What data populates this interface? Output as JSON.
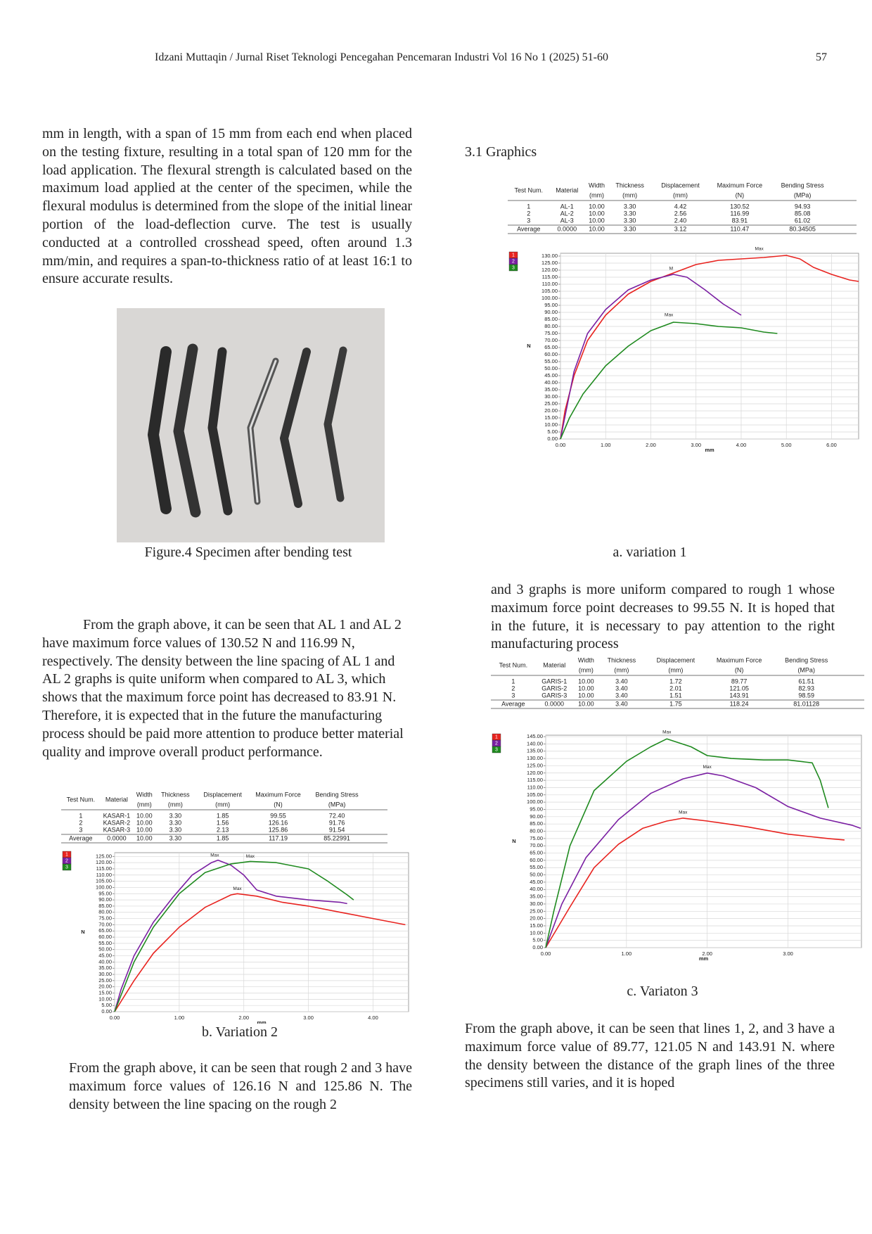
{
  "header": {
    "running_title": "Idzani Muttaqin / Jurnal Riset Teknologi Pencegahan Pencemaran Industri Vol 16 No 1 (2025) 51-60",
    "page_number": "57"
  },
  "left_column": {
    "paragraph_1": "mm in length, with a span of 15 mm from each end when placed on the testing fixture, resulting in a total span of 120 mm for the load application. The flexural strength is calculated based on the maximum load applied at the center of the specimen, while the flexural modulus is determined from the slope of the initial linear portion of the load-deflection curve. The test is usually conducted at a controlled crosshead speed, often around 1.3 mm/min, and requires a span-to-thickness ratio of at least 16:1 to ensure accurate results.",
    "figure_caption": "Figure.4 Specimen after bending test",
    "paragraph_2": "From the graph above, it can be seen that AL 1 and AL 2 have maximum force values of 130.52 N and 116.99 N, respectively. The density between the line spacing of AL 1 and AL 2 graphs is quite uniform when compared to AL 3, which shows that the maximum force point has decreased to 83.91 N. Therefore, it is expected that in the future the manufacturing process should be paid more attention to produce better material quality and improve overall product performance.",
    "caption_b": "b. Variation 2",
    "paragraph_3": "From the graph above, it can be seen that rough 2 and 3 have maximum force values of 126.16 N and 125.86 N. The density between the line spacing on the rough 2"
  },
  "right_column": {
    "section_heading": "3.1 Graphics",
    "caption_a": "a. variation 1",
    "paragraph_1": "and 3 graphs is more uniform compared to rough 1 whose maximum force point decreases to 99.55 N. It is hoped that in the future, it is necessary to pay attention to the right manufacturing process",
    "caption_c": "c. Variaton 3",
    "paragraph_2": "From the graph above, it can be seen that lines 1, 2, and 3 have a maximum force value of 89.77, 121.05 N and 143.91 N. where the density between the distance of the graph lines of the three specimens still varies, and it is hoped"
  },
  "tables": [
    {
      "columns": [
        [
          "Test Num."
        ],
        [
          "Material"
        ],
        [
          "Width",
          "(mm)"
        ],
        [
          "Thickness",
          "(mm)"
        ],
        [
          "Displacement",
          "(mm)"
        ],
        [
          "Maximum Force",
          "(N)"
        ],
        [
          "Bending Stress",
          "(MPa)"
        ]
      ],
      "rows": [
        [
          "1",
          "AL-1",
          "10.00",
          "3.30",
          "4.42",
          "130.52",
          "94.93"
        ],
        [
          "2",
          "AL-2",
          "10.00",
          "3.30",
          "2.56",
          "116.99",
          "85.08"
        ],
        [
          "3",
          "AL-3",
          "10.00",
          "3.30",
          "2.40",
          "83.91",
          "61.02"
        ],
        [
          "Average",
          "0.0000",
          "10.00",
          "3.30",
          "3.12",
          "110.47",
          "80.34505"
        ]
      ]
    },
    {
      "columns": [
        [
          "Test Num."
        ],
        [
          "Material"
        ],
        [
          "Width",
          "(mm)"
        ],
        [
          "Thickness",
          "(mm)"
        ],
        [
          "Displacement",
          "(mm)"
        ],
        [
          "Maximum Force",
          "(N)"
        ],
        [
          "Bending Stress",
          "(MPa)"
        ]
      ],
      "rows": [
        [
          "1",
          "KASAR-1",
          "10.00",
          "3.30",
          "1.85",
          "99.55",
          "72.40"
        ],
        [
          "2",
          "KASAR-2",
          "10.00",
          "3.30",
          "1.56",
          "126.16",
          "91.76"
        ],
        [
          "3",
          "KASAR-3",
          "10.00",
          "3.30",
          "2.13",
          "125.86",
          "91.54"
        ],
        [
          "Average",
          "0.0000",
          "10.00",
          "3.30",
          "1.85",
          "117.19",
          "85.22991"
        ]
      ]
    },
    {
      "columns": [
        [
          "Test Num."
        ],
        [
          "Material"
        ],
        [
          "Width",
          "(mm)"
        ],
        [
          "Thickness",
          "(mm)"
        ],
        [
          "Displacement",
          "(mm)"
        ],
        [
          "Maximum Force",
          "(N)"
        ],
        [
          "Bending Stress",
          "(MPa)"
        ]
      ],
      "rows": [
        [
          "1",
          "GARIS-1",
          "10.00",
          "3.40",
          "1.72",
          "89.77",
          "61.51"
        ],
        [
          "2",
          "GARIS-2",
          "10.00",
          "3.40",
          "2.01",
          "121.05",
          "82.93"
        ],
        [
          "3",
          "GARIS-3",
          "10.00",
          "3.40",
          "1.51",
          "143.91",
          "98.59"
        ],
        [
          "Average",
          "0.0000",
          "10.00",
          "3.40",
          "1.75",
          "118.24",
          "81.01128"
        ]
      ]
    }
  ],
  "chart_data": [
    {
      "type": "line",
      "x_label": "mm",
      "y_label": "N",
      "grid": true,
      "xlim": [
        0,
        6.6
      ],
      "ylim": [
        0,
        132
      ],
      "xticks": [
        {
          "value": 0,
          "label": "0.00"
        },
        {
          "value": 1,
          "label": "1.00"
        },
        {
          "value": 2,
          "label": "2.00"
        },
        {
          "value": 3,
          "label": "3.00"
        },
        {
          "value": 4,
          "label": "4.00"
        },
        {
          "value": 5,
          "label": "5.00"
        },
        {
          "value": 6,
          "label": "6.00"
        }
      ],
      "yticks": [
        {
          "value": 0,
          "label": "0.00"
        },
        {
          "value": 5,
          "label": "5.00"
        },
        {
          "value": 10,
          "label": "10.00"
        },
        {
          "value": 15,
          "label": "15.00"
        },
        {
          "value": 20,
          "label": "20.00"
        },
        {
          "value": 25,
          "label": "25.00"
        },
        {
          "value": 30,
          "label": "30.00"
        },
        {
          "value": 35,
          "label": "35.00"
        },
        {
          "value": 40,
          "label": "40.00"
        },
        {
          "value": 45,
          "label": "45.00"
        },
        {
          "value": 50,
          "label": "50.00"
        },
        {
          "value": 55,
          "label": "55.00"
        },
        {
          "value": 60,
          "label": "60.00"
        },
        {
          "value": 65,
          "label": "65.00"
        },
        {
          "value": 70,
          "label": "70.00"
        },
        {
          "value": 75,
          "label": "75.00"
        },
        {
          "value": 80,
          "label": "80.00"
        },
        {
          "value": 85,
          "label": "85.00"
        },
        {
          "value": 90,
          "label": "90.00"
        },
        {
          "value": 95,
          "label": "95.00"
        },
        {
          "value": 100,
          "label": "100.00"
        },
        {
          "value": 105,
          "label": "105.00"
        },
        {
          "value": 110,
          "label": "110.00"
        },
        {
          "value": 115,
          "label": "115.00"
        },
        {
          "value": 120,
          "label": "120.00"
        },
        {
          "value": 125,
          "label": "125.00"
        },
        {
          "value": 130,
          "label": "130.00"
        }
      ],
      "series": [
        {
          "name": "1",
          "color": "#e8231f",
          "x": [
            0,
            0.1,
            0.3,
            0.6,
            1.0,
            1.5,
            2.0,
            2.5,
            3.0,
            3.5,
            4.0,
            4.5,
            5.0,
            5.3,
            5.6,
            6.0,
            6.4,
            6.6
          ],
          "values": [
            0,
            20,
            45,
            70,
            88,
            103,
            112,
            118,
            124,
            127,
            128,
            129,
            130.5,
            128,
            122,
            117,
            113,
            112
          ]
        },
        {
          "name": "2",
          "color": "#7a1fa2",
          "x": [
            0,
            0.3,
            0.6,
            1.0,
            1.5,
            2.0,
            2.5,
            2.8,
            3.2,
            3.6,
            4.0
          ],
          "values": [
            0,
            48,
            75,
            92,
            106,
            113,
            117,
            115,
            106,
            96,
            88
          ]
        },
        {
          "name": "3",
          "color": "#1f8a1f",
          "x": [
            0,
            0.2,
            0.5,
            1.0,
            1.5,
            2.0,
            2.5,
            3.0,
            3.5,
            4.0,
            4.5,
            4.8
          ],
          "values": [
            0,
            15,
            32,
            52,
            66,
            77,
            83,
            82,
            80,
            79,
            76,
            75
          ]
        }
      ],
      "annotations": [
        {
          "text": "Max",
          "x": 4.4,
          "y": 135
        },
        {
          "text": "M",
          "x": 2.45,
          "y": 121
        },
        {
          "text": "Max",
          "x": 2.4,
          "y": 88
        }
      ]
    },
    {
      "type": "line",
      "x_label": "mm",
      "y_label": "N",
      "grid": true,
      "xlim": [
        0,
        4.55
      ],
      "ylim": [
        0,
        128
      ],
      "xticks": [
        {
          "value": 0,
          "label": "0.00"
        },
        {
          "value": 1,
          "label": "1.00"
        },
        {
          "value": 2,
          "label": "2.00"
        },
        {
          "value": 3,
          "label": "3.00"
        },
        {
          "value": 4,
          "label": "4.00"
        }
      ],
      "yticks": [
        {
          "value": 0,
          "label": "0.00"
        },
        {
          "value": 5,
          "label": "5.00"
        },
        {
          "value": 10,
          "label": "10.00"
        },
        {
          "value": 15,
          "label": "15.00"
        },
        {
          "value": 20,
          "label": "20.00"
        },
        {
          "value": 25,
          "label": "25.00"
        },
        {
          "value": 30,
          "label": "30.00"
        },
        {
          "value": 35,
          "label": "35.00"
        },
        {
          "value": 40,
          "label": "40.00"
        },
        {
          "value": 45,
          "label": "45.00"
        },
        {
          "value": 50,
          "label": "50.00"
        },
        {
          "value": 55,
          "label": "55.00"
        },
        {
          "value": 60,
          "label": "60.00"
        },
        {
          "value": 65,
          "label": "65.00"
        },
        {
          "value": 70,
          "label": "70.00"
        },
        {
          "value": 75,
          "label": "75.00"
        },
        {
          "value": 80,
          "label": "80.00"
        },
        {
          "value": 85,
          "label": "85.00"
        },
        {
          "value": 90,
          "label": "90.00"
        },
        {
          "value": 95,
          "label": "95.00"
        },
        {
          "value": 100,
          "label": "100.00"
        },
        {
          "value": 105,
          "label": "105.00"
        },
        {
          "value": 110,
          "label": "110.00"
        },
        {
          "value": 115,
          "label": "115.00"
        },
        {
          "value": 120,
          "label": "120.00"
        },
        {
          "value": 125,
          "label": "125.00"
        }
      ],
      "series": [
        {
          "name": "1",
          "color": "#e8231f",
          "x": [
            0,
            0.3,
            0.6,
            1.0,
            1.4,
            1.8,
            1.9,
            2.2,
            2.6,
            3.0,
            3.5,
            4.0,
            4.5
          ],
          "values": [
            0,
            25,
            47,
            68,
            84,
            94,
            95,
            93,
            88,
            85,
            80,
            75,
            70
          ]
        },
        {
          "name": "2",
          "color": "#7a1fa2",
          "x": [
            0,
            0.1,
            0.3,
            0.6,
            0.9,
            1.2,
            1.5,
            1.6,
            1.8,
            2.0,
            2.2,
            2.5,
            3.0,
            3.5,
            3.6
          ],
          "values": [
            0,
            18,
            45,
            72,
            92,
            110,
            120,
            122,
            118,
            110,
            98,
            93,
            90,
            88,
            87
          ]
        },
        {
          "name": "3",
          "color": "#1f8a1f",
          "x": [
            0,
            0.3,
            0.6,
            1.0,
            1.4,
            1.8,
            2.1,
            2.5,
            3.0,
            3.3,
            3.6,
            3.7
          ],
          "values": [
            0,
            40,
            68,
            95,
            112,
            119,
            121,
            120,
            115,
            105,
            94,
            90
          ]
        }
      ],
      "annotations": [
        {
          "text": "Max",
          "x": 1.55,
          "y": 126
        },
        {
          "text": "Max",
          "x": 2.1,
          "y": 125
        },
        {
          "text": "Max",
          "x": 1.9,
          "y": 99
        }
      ]
    },
    {
      "type": "line",
      "x_label": "mm",
      "y_label": "N",
      "grid": true,
      "xlim": [
        0,
        3.91
      ],
      "ylim": [
        0,
        146
      ],
      "xticks": [
        {
          "value": 0,
          "label": "0.00"
        },
        {
          "value": 1,
          "label": "1.00"
        },
        {
          "value": 2,
          "label": "2.00"
        },
        {
          "value": 3,
          "label": "3.00"
        }
      ],
      "yticks": [
        {
          "value": 0,
          "label": "0.00"
        },
        {
          "value": 5,
          "label": "5.00"
        },
        {
          "value": 10,
          "label": "10.00"
        },
        {
          "value": 15,
          "label": "15.00"
        },
        {
          "value": 20,
          "label": "20.00"
        },
        {
          "value": 25,
          "label": "25.00"
        },
        {
          "value": 30,
          "label": "30.00"
        },
        {
          "value": 35,
          "label": "35.00"
        },
        {
          "value": 40,
          "label": "40.00"
        },
        {
          "value": 45,
          "label": "45.00"
        },
        {
          "value": 50,
          "label": "50.00"
        },
        {
          "value": 55,
          "label": "55.00"
        },
        {
          "value": 60,
          "label": "60.00"
        },
        {
          "value": 65,
          "label": "65.00"
        },
        {
          "value": 70,
          "label": "70.00"
        },
        {
          "value": 75,
          "label": "75.00"
        },
        {
          "value": 80,
          "label": "80.00"
        },
        {
          "value": 85,
          "label": "85.00"
        },
        {
          "value": 90,
          "label": "90.00"
        },
        {
          "value": 95,
          "label": "95.00"
        },
        {
          "value": 100,
          "label": "100.00"
        },
        {
          "value": 105,
          "label": "105.00"
        },
        {
          "value": 110,
          "label": "110.00"
        },
        {
          "value": 115,
          "label": "115.00"
        },
        {
          "value": 120,
          "label": "120.00"
        },
        {
          "value": 125,
          "label": "125.00"
        },
        {
          "value": 130,
          "label": "130.00"
        },
        {
          "value": 135,
          "label": "135.00"
        },
        {
          "value": 140,
          "label": "140.00"
        },
        {
          "value": 145,
          "label": "145.00"
        }
      ],
      "series": [
        {
          "name": "1",
          "color": "#e8231f",
          "x": [
            0,
            0.3,
            0.6,
            0.9,
            1.2,
            1.5,
            1.7,
            2.0,
            2.5,
            3.0,
            3.5,
            3.7
          ],
          "values": [
            0,
            28,
            55,
            71,
            82,
            87,
            89,
            87,
            83,
            78,
            75,
            74
          ]
        },
        {
          "name": "2",
          "color": "#7a1fa2",
          "x": [
            0,
            0.2,
            0.5,
            0.9,
            1.3,
            1.7,
            2.0,
            2.2,
            2.6,
            3.0,
            3.4,
            3.8,
            3.9
          ],
          "values": [
            0,
            30,
            62,
            88,
            106,
            116,
            120,
            118,
            110,
            97,
            89,
            84,
            82
          ]
        },
        {
          "name": "3",
          "color": "#1f8a1f",
          "x": [
            0,
            0.1,
            0.3,
            0.6,
            1.0,
            1.3,
            1.5,
            1.8,
            2.0,
            2.3,
            2.7,
            3.0,
            3.3,
            3.4,
            3.5
          ],
          "values": [
            0,
            25,
            70,
            108,
            128,
            138,
            143.5,
            138,
            132,
            130,
            129,
            129,
            127,
            115,
            96
          ]
        }
      ],
      "annotations": [
        {
          "text": "Max",
          "x": 1.5,
          "y": 148
        },
        {
          "text": "Max",
          "x": 2.0,
          "y": 124
        },
        {
          "text": "Max",
          "x": 1.7,
          "y": 93
        }
      ]
    }
  ]
}
